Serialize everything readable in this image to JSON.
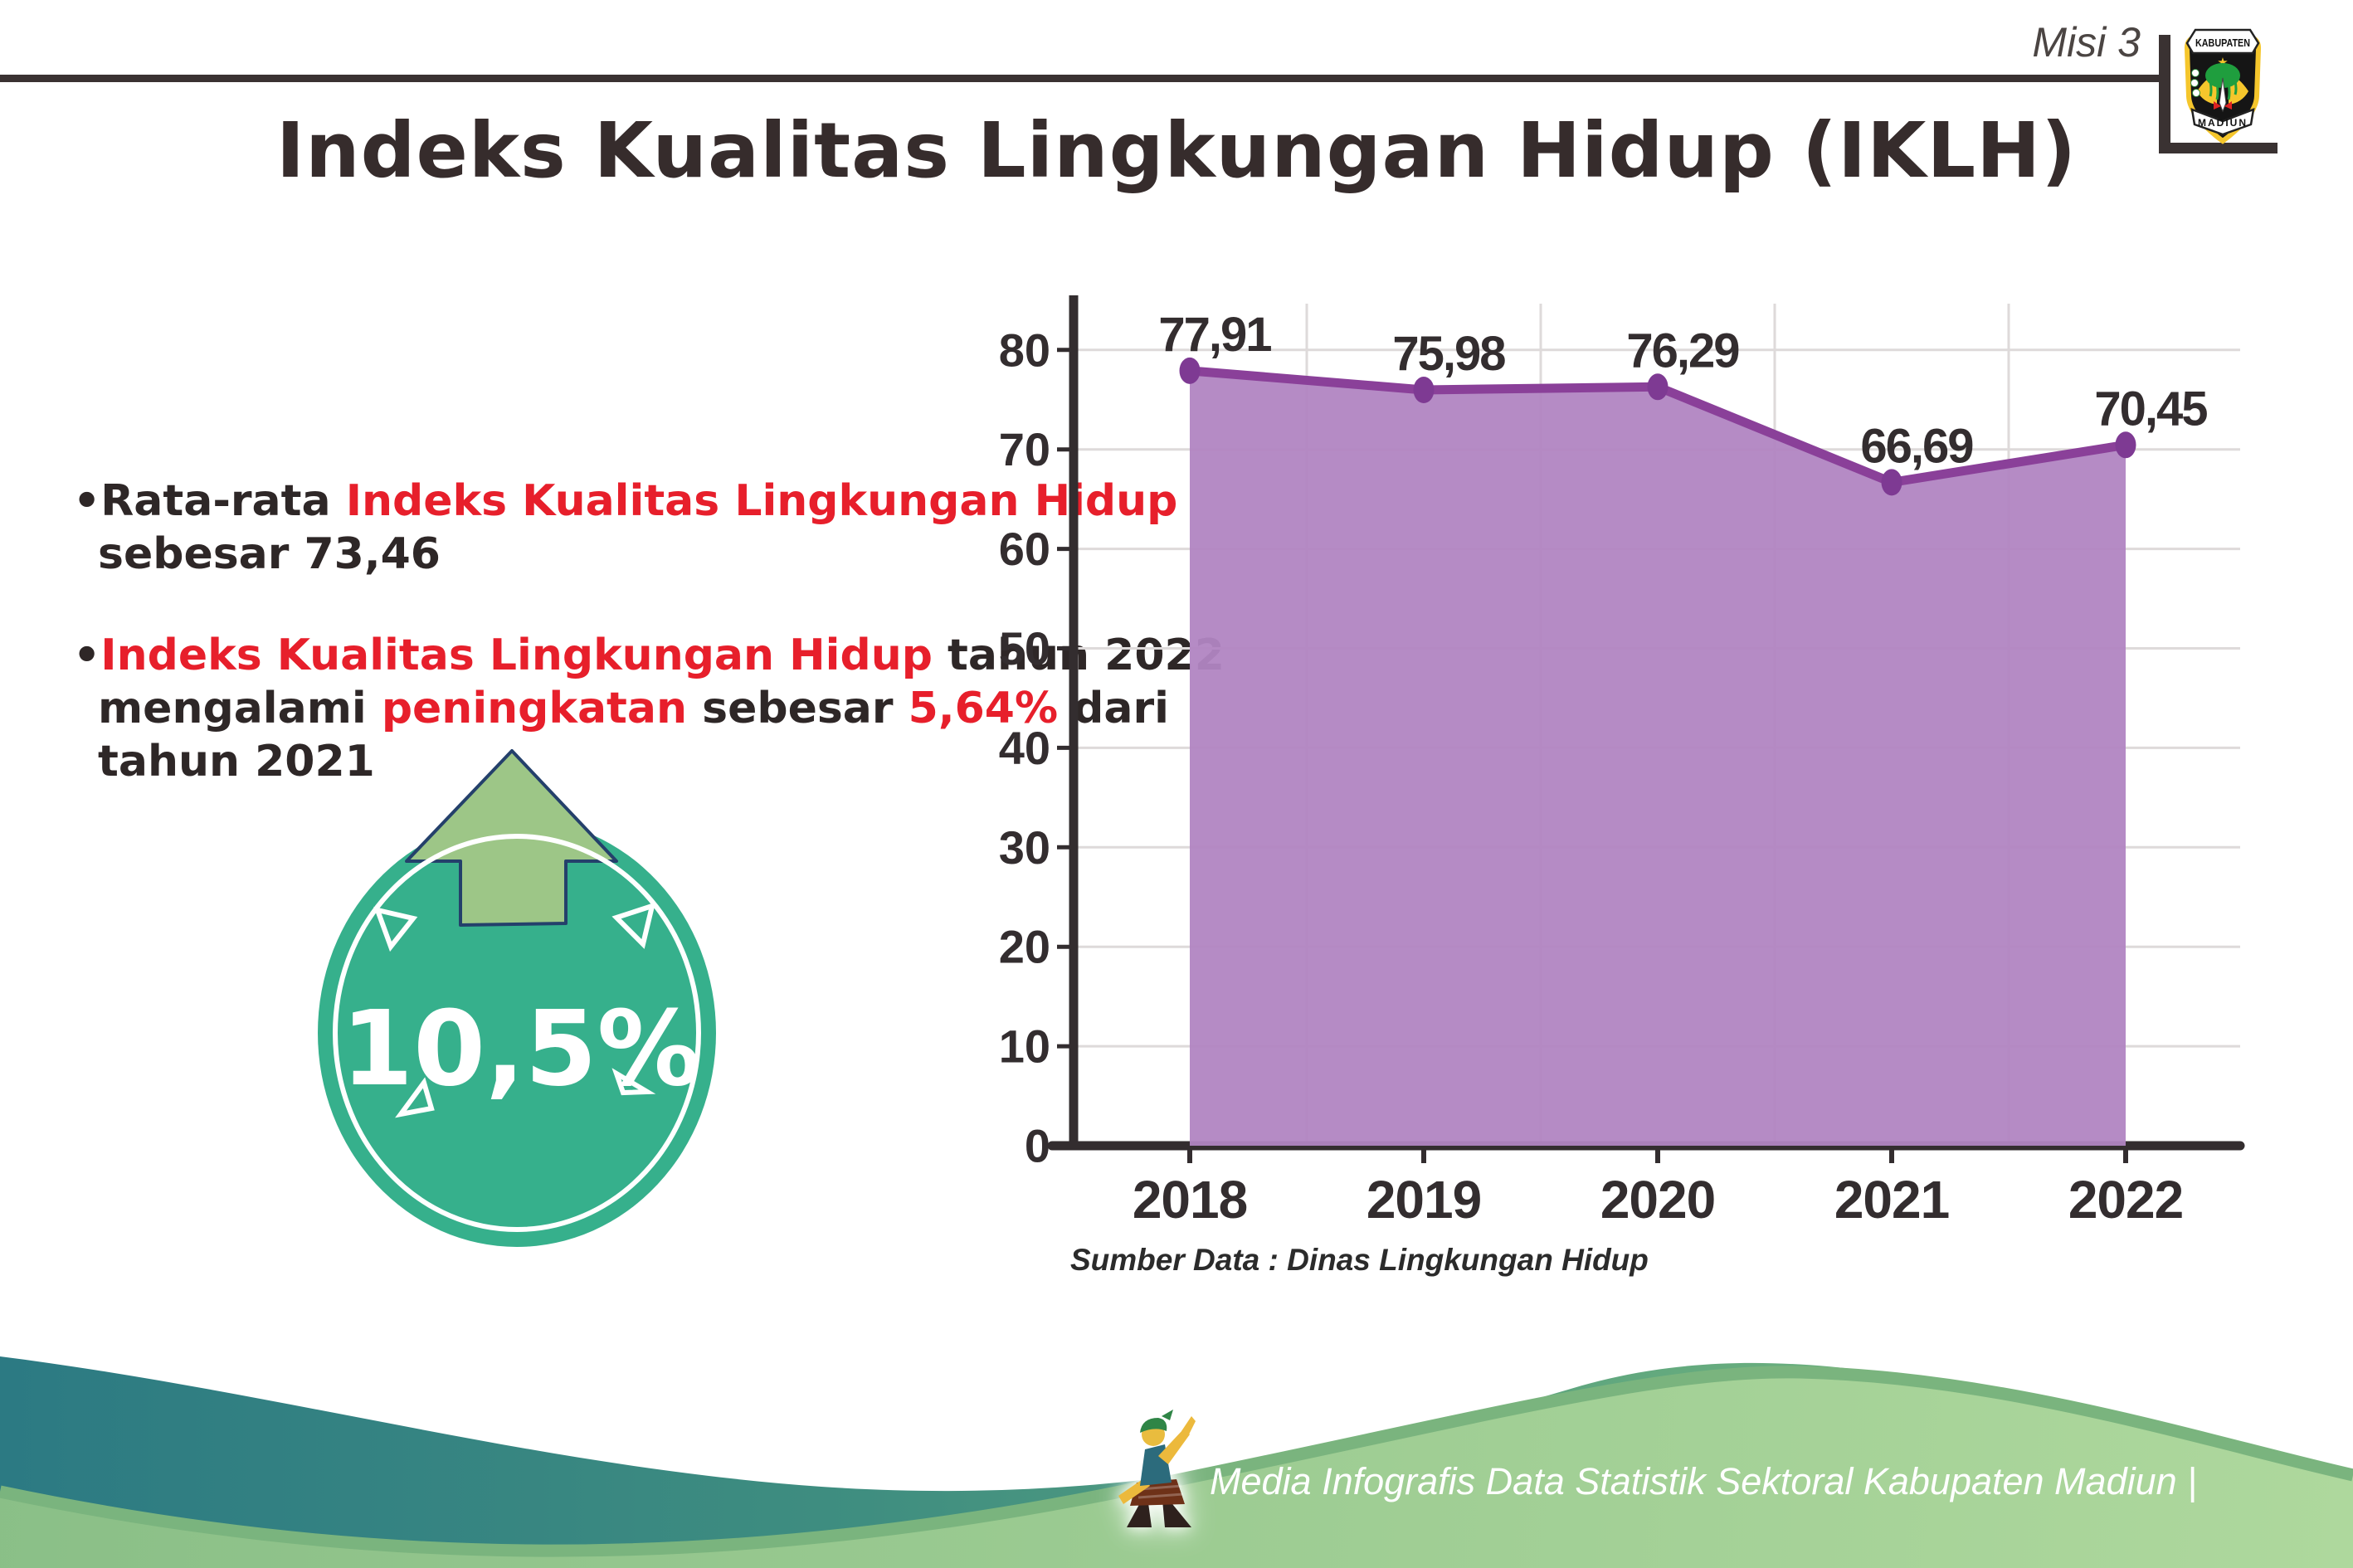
{
  "header": {
    "misi": "Misi 3",
    "title": "Indeks Kualitas Lingkungan Hidup (IKLH)",
    "logo": {
      "top_text": "KABUPATEN",
      "bottom_text": "MADIUN"
    }
  },
  "bullets": [
    {
      "lines": [
        [
          {
            "text": "•Rata-rata ",
            "color": "dark"
          },
          {
            "text": "Indeks Kualitas Lingkungan Hidup",
            "color": "red"
          }
        ],
        [
          {
            "text": "sebesar 73,46",
            "color": "dark"
          }
        ]
      ]
    },
    {
      "lines": [
        [
          {
            "text": "•",
            "color": "dark"
          },
          {
            "text": "Indeks Kualitas Lingkungan Hidup",
            "color": "red"
          },
          {
            "text": " tahun 2022",
            "color": "dark"
          }
        ],
        [
          {
            "text": "mengalami ",
            "color": "dark"
          },
          {
            "text": "peningkatan",
            "color": "red"
          },
          {
            "text": " sebesar ",
            "color": "dark"
          },
          {
            "text": "5,64%",
            "color": "red"
          },
          {
            "text": " dari",
            "color": "dark"
          }
        ],
        [
          {
            "text": "tahun 2021",
            "color": "dark"
          }
        ]
      ]
    }
  ],
  "badge": {
    "value": "10,5%",
    "direction": "up-arrow"
  },
  "chart_data": {
    "type": "area",
    "categories": [
      "2018",
      "2019",
      "2020",
      "2021",
      "2022"
    ],
    "values": [
      77.91,
      75.98,
      76.29,
      66.69,
      70.45
    ],
    "value_labels": [
      "77,91",
      "75,98",
      "76,29",
      "66,69",
      "70,45"
    ],
    "title": "",
    "xlabel": "",
    "ylabel": "",
    "ylim": [
      0,
      80
    ],
    "ytick_step": 10,
    "yticks": [
      "0",
      "10",
      "20",
      "30",
      "40",
      "50",
      "60",
      "70",
      "80"
    ],
    "grid": true,
    "legend": "none",
    "fill_color": "#b185c2",
    "line_color": "#8a4099",
    "marker_color": "#7e3a93"
  },
  "source": {
    "label": "Sumber Data : Dinas Lingkungan Hidup"
  },
  "footer": {
    "label": "Media Infografis Data Statistik Sektoral Kabupaten Madiun |"
  },
  "colors": {
    "accent_red": "#e71f2b",
    "text_dark": "#2e2727",
    "axis_dark": "#332d2f",
    "gridline": "#dedada",
    "badge_teal": "#36b08c",
    "arrow_green": "#9dc687",
    "arrow_outline_navy": "#24406b",
    "wave_teal": "#2c7a83",
    "wave_green": "#6fb27e",
    "wave_light_green": "#aed89d",
    "wave_stripe": "#7ab47e",
    "rule_dark": "#3a3232",
    "logo_yellow": "#f5c62c",
    "logo_green": "#1f9e3e"
  }
}
